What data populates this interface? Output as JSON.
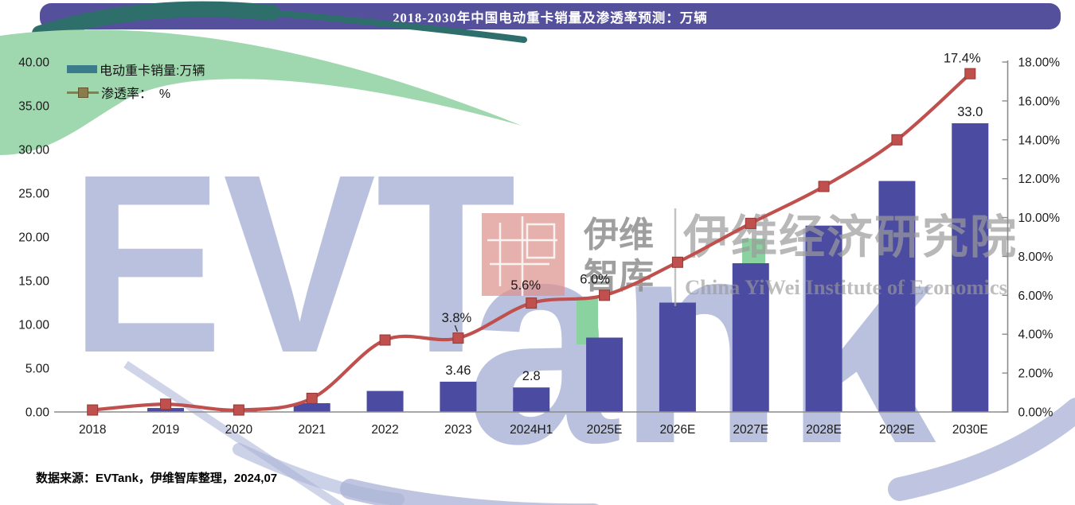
{
  "title": "2018-2030年中国电动重卡销量及渗透率预测：万辆",
  "legend": {
    "items": [
      {
        "label": "电动重卡销量:万辆",
        "type": "bar",
        "color": "#3a7b8c"
      },
      {
        "label": "渗透率：  %",
        "type": "line",
        "color": "#8b7d4a"
      }
    ]
  },
  "source_note": "数据来源：EVTank，伊维智库整理，2024,07",
  "watermark": {
    "evtank_top": "EVT",
    "evtank_bottom": "ank",
    "logo_line1": "伊维",
    "logo_line2": "智库",
    "institute_cn": "伊维经济研究院",
    "institute_en": "China YiWei Institute of Economics"
  },
  "colors": {
    "title_bar": "#55509b",
    "bar": "#4c4ba2",
    "line": "#c0504d",
    "marker_stroke": "#953735",
    "axis": "#8c8c8c",
    "label": "#1a1a1a",
    "wm_green": "#9fd7ae",
    "wm_green_sq": "#8ad2a0",
    "wm_teal": "#2f6f6b",
    "wm_periwinkle": "#a9b2d6",
    "wm_pink": "#dd928d",
    "wm_gray": "#9b9b9b"
  },
  "chart_data": {
    "type": "bar+line",
    "title": "2018-2030年中国电动重卡销量及渗透率预测：万辆",
    "categories": [
      "2018",
      "2019",
      "2020",
      "2021",
      "2022",
      "2023",
      "2024H1",
      "2025E",
      "2026E",
      "2027E",
      "2028E",
      "2029E",
      "2030E"
    ],
    "series": [
      {
        "name": "电动重卡销量:万辆",
        "type": "bar",
        "axis": "left",
        "values": [
          0.05,
          0.45,
          0.2,
          1.0,
          2.4,
          3.46,
          2.8,
          8.5,
          12.5,
          17.0,
          21.3,
          26.4,
          33.0
        ],
        "labels": [
          {
            "i": 5,
            "text": "3.46",
            "dx": 0,
            "dy": -9
          },
          {
            "i": 6,
            "text": "2.8",
            "dx": 0,
            "dy": -9
          },
          {
            "i": 12,
            "text": "33.0",
            "dx": 0,
            "dy": -9
          }
        ]
      },
      {
        "name": "渗透率：%",
        "type": "line",
        "axis": "right",
        "values": [
          0.1,
          0.4,
          0.1,
          0.7,
          3.7,
          3.8,
          5.6,
          6.0,
          7.7,
          9.7,
          11.6,
          14.0,
          17.4
        ],
        "labels": [
          {
            "i": 5,
            "text": "3.8%",
            "dx": -2,
            "dy": -20,
            "leader": true
          },
          {
            "i": 6,
            "text": "5.6%",
            "dx": -7,
            "dy": -17
          },
          {
            "i": 7,
            "text": "6.0%",
            "dx": -12,
            "dy": -15
          },
          {
            "i": 12,
            "text": "17.4%",
            "dx": -10,
            "dy": -14
          }
        ]
      }
    ],
    "left_axis": {
      "min": 0,
      "max": 40,
      "ticks": [
        "40.00",
        "35.00",
        "30.00",
        "25.00",
        "20.00",
        "15.00",
        "10.00",
        "5.00",
        "0.00"
      ]
    },
    "right_axis": {
      "min": 0,
      "max": 18,
      "ticks": [
        "18.00%",
        "16.00%",
        "14.00%",
        "12.00%",
        "10.00%",
        "8.00%",
        "6.00%",
        "4.00%",
        "2.00%",
        "0.00%"
      ]
    },
    "grid": false,
    "legend_position": "top-left"
  }
}
